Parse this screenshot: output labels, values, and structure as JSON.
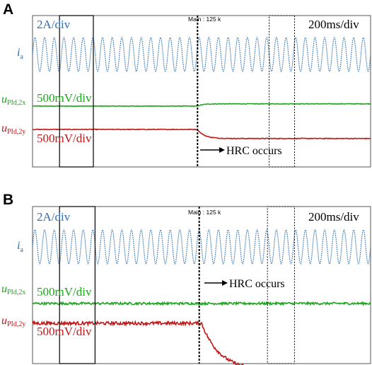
{
  "chart_data": [
    {
      "type": "line",
      "panel_label": "A",
      "time_scale": "200ms/div",
      "trigger_label": "Main : 125 k",
      "annotation": "HRC occurs",
      "series": [
        {
          "name": "i_a",
          "label_main": "i",
          "label_sub": "a",
          "scale": "2A/div",
          "color": "#2f6fb0",
          "waveform": "sinusoid",
          "cycles": 35,
          "change_at_div": 0,
          "start": 0,
          "end": 0,
          "tau_div": 0,
          "noise": 0
        },
        {
          "name": "u_PId,2x",
          "label_main": "u",
          "label_sub": "PId,2x",
          "scale": "500mV/div",
          "color": "#1ea51e",
          "waveform": "step",
          "cycles": 0,
          "change_at_div": 4.88,
          "start": 0.0,
          "end": 0.04,
          "tau_div": 0.15,
          "noise": 0.01
        },
        {
          "name": "u_PId,2y",
          "label_main": "u",
          "label_sub": "PId,2y",
          "scale": "500mV/div",
          "color": "#c01818",
          "waveform": "step",
          "cycles": 0,
          "change_at_div": 4.88,
          "start": 0.0,
          "end": -0.16,
          "tau_div": 0.2,
          "noise": 0.012
        }
      ],
      "event_time_div": 4.88,
      "window_boxes_div": [
        [
          0.8,
          1.8
        ],
        [
          7.0,
          7.75
        ]
      ]
    },
    {
      "type": "line",
      "panel_label": "B",
      "time_scale": "200ms/div",
      "trigger_label": "Main : 125 k",
      "annotation": "HRC occurs",
      "series": [
        {
          "name": "i_a",
          "label_main": "i",
          "label_sub": "a",
          "scale": "2A/div",
          "color": "#2f6fb0",
          "waveform": "sinusoid",
          "cycles": 35,
          "change_at_div": 0,
          "start": 0,
          "end": 0,
          "tau_div": 0,
          "noise": 0
        },
        {
          "name": "u_PId,2x",
          "label_main": "u",
          "label_sub": "PId,2x",
          "scale": "500mV/div",
          "color": "#1ea51e",
          "waveform": "step",
          "cycles": 0,
          "change_at_div": 5.0,
          "start": 0.0,
          "end": 0.0,
          "tau_div": 0.5,
          "noise": 0.04
        },
        {
          "name": "u_PId,2y",
          "label_main": "u",
          "label_sub": "PId,2y",
          "scale": "500mV/div",
          "color": "#c01818",
          "waveform": "step",
          "cycles": 0,
          "change_at_div": 5.0,
          "start": 0.0,
          "end": -0.52,
          "tau_div": 0.55,
          "noise": 0.035
        }
      ],
      "event_time_div": 4.93,
      "window_boxes_div": [
        [
          0.8,
          1.85
        ],
        [
          6.95,
          7.75
        ]
      ]
    }
  ]
}
